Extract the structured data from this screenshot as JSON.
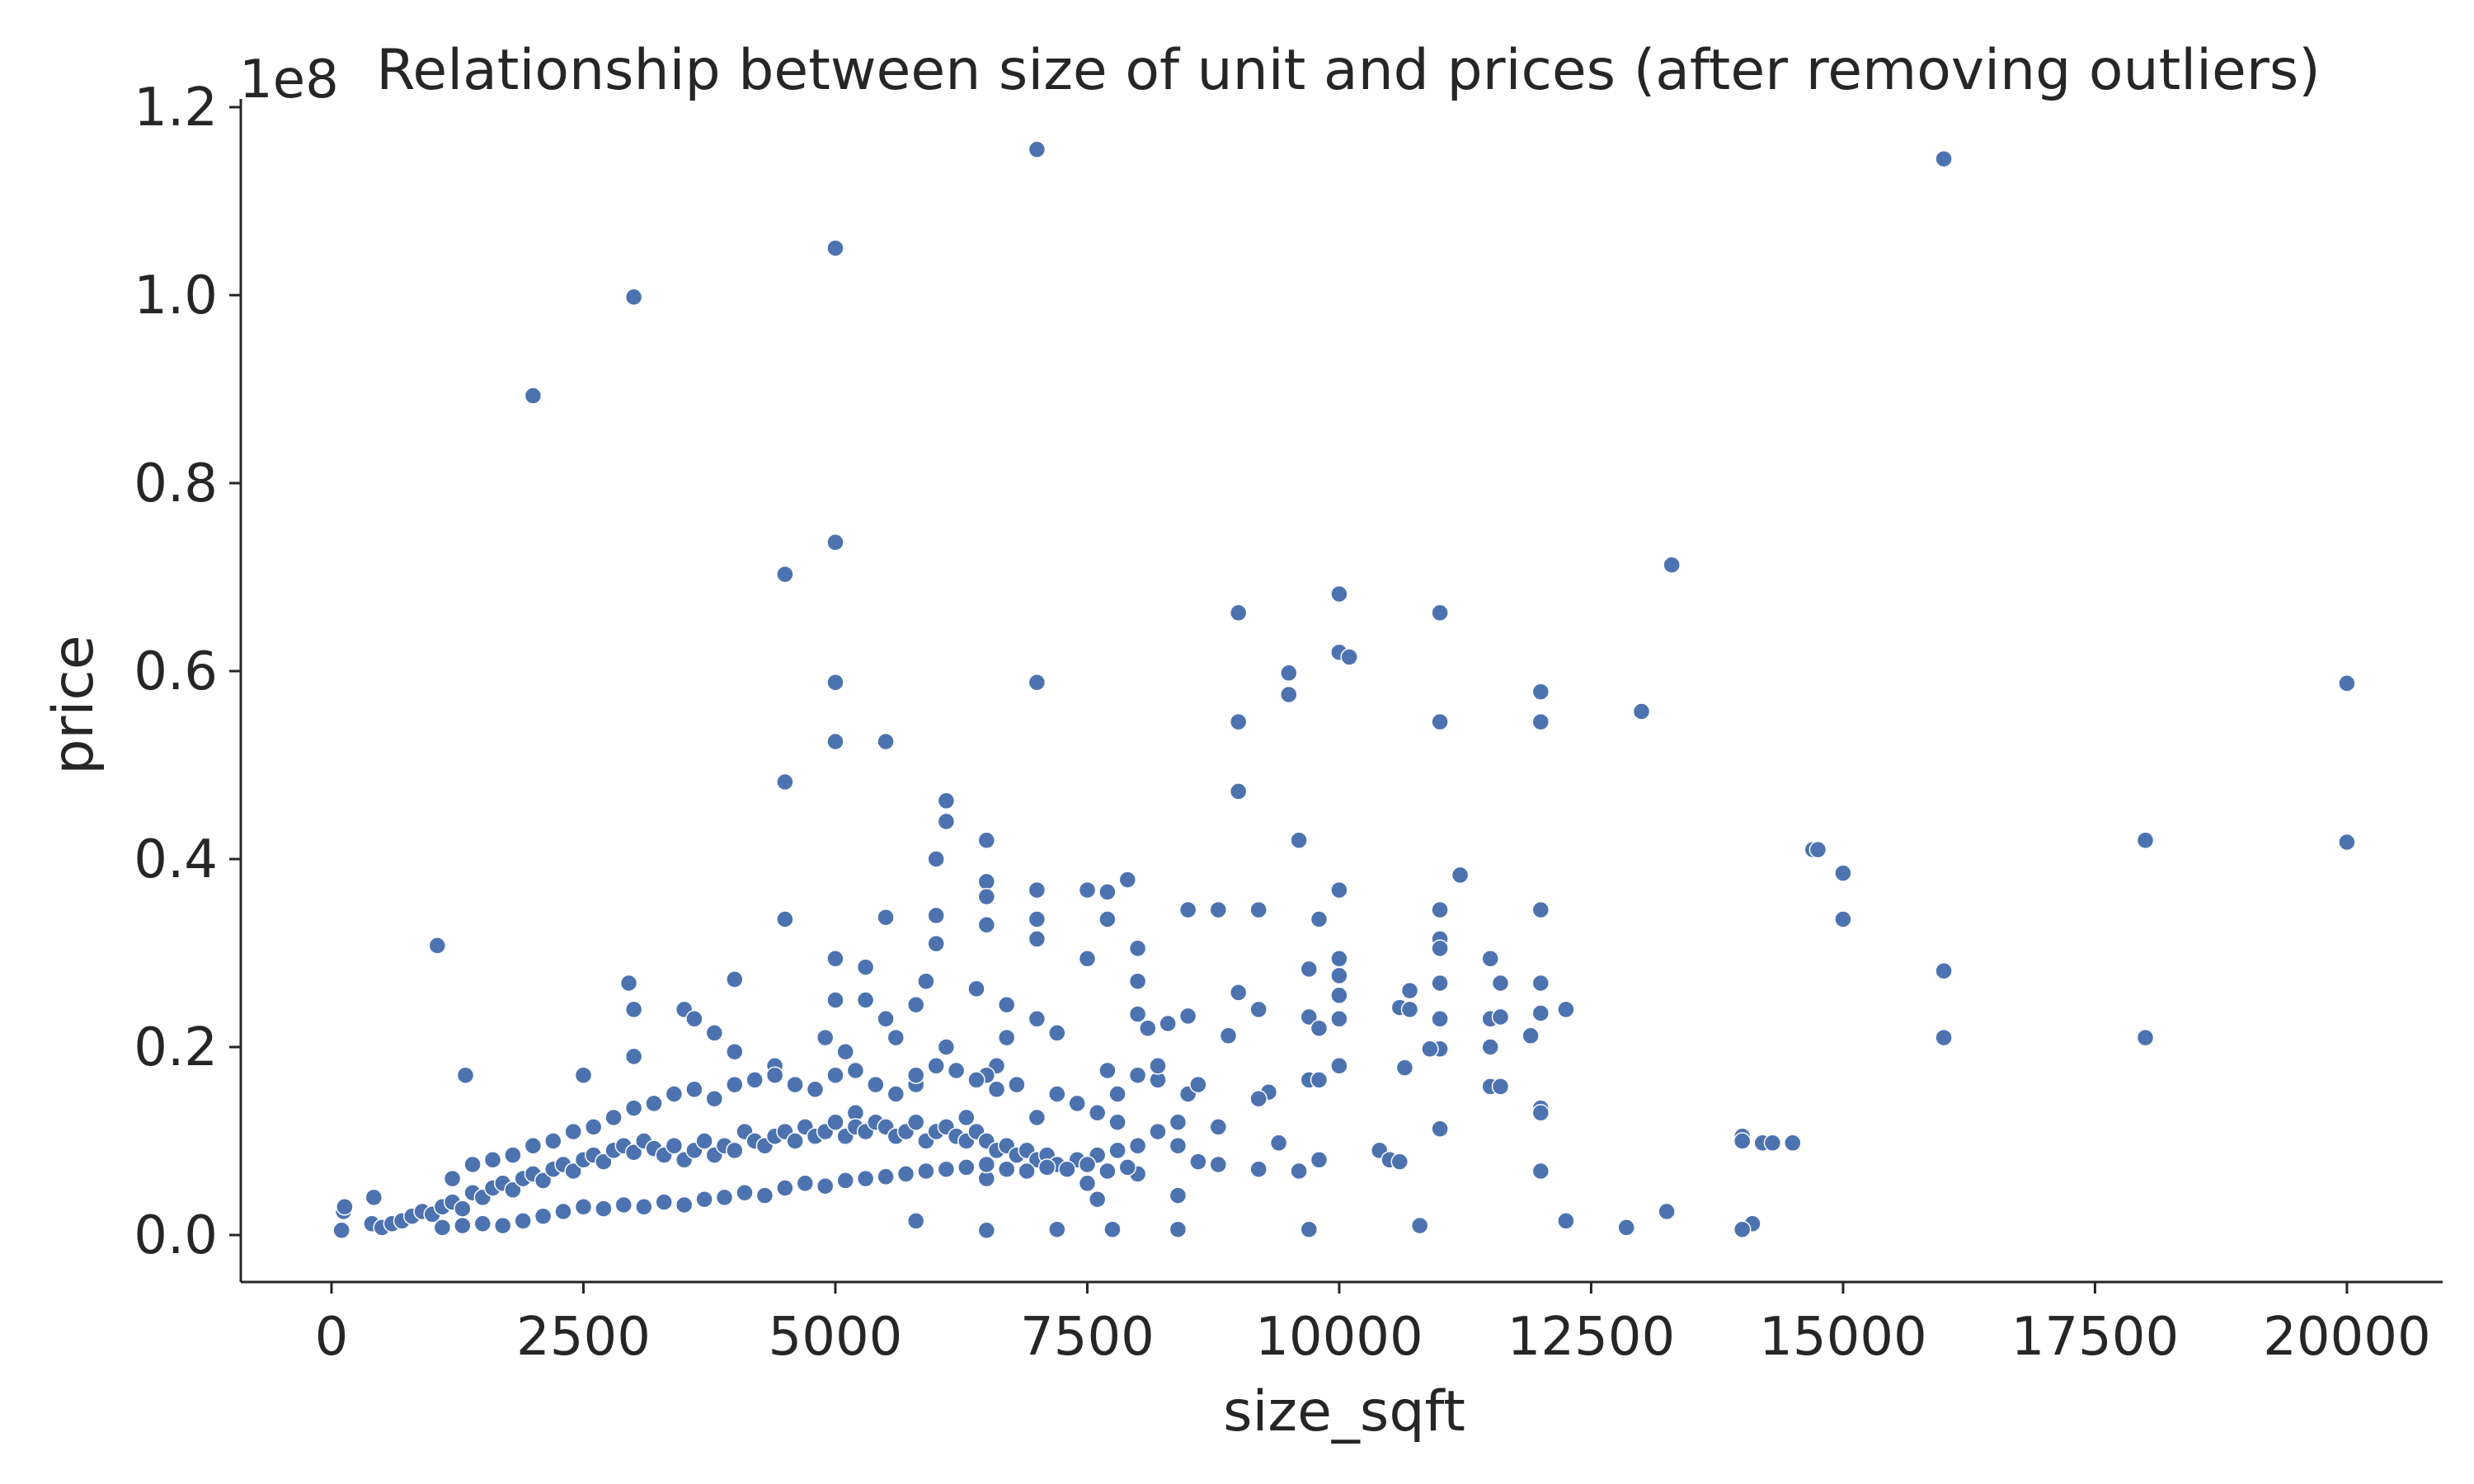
{
  "chart_data": {
    "type": "scatter",
    "title": "Relationship between size of unit and prices (after removing outliers)",
    "xlabel": "size_sqft",
    "ylabel": "price",
    "y_offset_label": "1e8",
    "xlim": [
      -900,
      20950
    ],
    "ylim": [
      -0.05,
      1.2
    ],
    "x_ticks": [
      0,
      2500,
      5000,
      7500,
      10000,
      12500,
      15000,
      17500,
      20000
    ],
    "x_tick_labels": [
      "0",
      "2500",
      "5000",
      "7500",
      "10000",
      "12500",
      "15000",
      "17500",
      "20000"
    ],
    "y_ticks": [
      0.0,
      0.2,
      0.4,
      0.6,
      0.8,
      1.0,
      1.2
    ],
    "y_tick_labels": [
      "0.0",
      "0.2",
      "0.4",
      "0.6",
      "0.8",
      "1.0",
      "1.2"
    ],
    "grid": false,
    "legend": false,
    "point_color": "#4c72b0",
    "points": [
      [
        7000,
        1.155
      ],
      [
        16000,
        1.145
      ],
      [
        5000,
        1.05
      ],
      [
        3000,
        0.998
      ],
      [
        2000,
        0.893
      ],
      [
        5000,
        0.737
      ],
      [
        4500,
        0.703
      ],
      [
        13300,
        0.713
      ],
      [
        10000,
        0.682
      ],
      [
        9000,
        0.662
      ],
      [
        11000,
        0.662
      ],
      [
        10000,
        0.62
      ],
      [
        10100,
        0.615
      ],
      [
        9500,
        0.598
      ],
      [
        9500,
        0.575
      ],
      [
        5000,
        0.588
      ],
      [
        7000,
        0.588
      ],
      [
        20000,
        0.587
      ],
      [
        12000,
        0.578
      ],
      [
        13000,
        0.557
      ],
      [
        9000,
        0.546
      ],
      [
        11000,
        0.546
      ],
      [
        12000,
        0.546
      ],
      [
        5000,
        0.525
      ],
      [
        5500,
        0.525
      ],
      [
        4500,
        0.482
      ],
      [
        9000,
        0.472
      ],
      [
        6100,
        0.462
      ],
      [
        6100,
        0.44
      ],
      [
        9600,
        0.42
      ],
      [
        6500,
        0.42
      ],
      [
        18000,
        0.42
      ],
      [
        20000,
        0.418
      ],
      [
        14700,
        0.41
      ],
      [
        14750,
        0.41
      ],
      [
        6000,
        0.4
      ],
      [
        15000,
        0.385
      ],
      [
        11200,
        0.383
      ],
      [
        7900,
        0.378
      ],
      [
        6500,
        0.376
      ],
      [
        7000,
        0.367
      ],
      [
        7500,
        0.367
      ],
      [
        7700,
        0.365
      ],
      [
        6500,
        0.36
      ],
      [
        10000,
        0.367
      ],
      [
        8500,
        0.346
      ],
      [
        8800,
        0.346
      ],
      [
        9200,
        0.346
      ],
      [
        11000,
        0.346
      ],
      [
        12000,
        0.346
      ],
      [
        5500,
        0.338
      ],
      [
        6000,
        0.34
      ],
      [
        4500,
        0.336
      ],
      [
        7000,
        0.336
      ],
      [
        7700,
        0.336
      ],
      [
        9800,
        0.336
      ],
      [
        15000,
        0.336
      ],
      [
        6500,
        0.33
      ],
      [
        7000,
        0.315
      ],
      [
        11000,
        0.315
      ],
      [
        1050,
        0.308
      ],
      [
        11000,
        0.305
      ],
      [
        6000,
        0.31
      ],
      [
        8000,
        0.305
      ],
      [
        5000,
        0.294
      ],
      [
        10000,
        0.294
      ],
      [
        11500,
        0.294
      ],
      [
        7500,
        0.294
      ],
      [
        5300,
        0.285
      ],
      [
        9700,
        0.283
      ],
      [
        16000,
        0.281
      ],
      [
        2950,
        0.268
      ],
      [
        8000,
        0.27
      ],
      [
        10000,
        0.276
      ],
      [
        11000,
        0.268
      ],
      [
        11600,
        0.268
      ],
      [
        12000,
        0.268
      ],
      [
        4000,
        0.272
      ],
      [
        5900,
        0.27
      ],
      [
        6400,
        0.262
      ],
      [
        10700,
        0.26
      ],
      [
        9000,
        0.258
      ],
      [
        10000,
        0.255
      ],
      [
        5000,
        0.25
      ],
      [
        5300,
        0.25
      ],
      [
        5800,
        0.245
      ],
      [
        6700,
        0.245
      ],
      [
        10600,
        0.242
      ],
      [
        10700,
        0.24
      ],
      [
        9200,
        0.24
      ],
      [
        3000,
        0.24
      ],
      [
        3500,
        0.24
      ],
      [
        12000,
        0.236
      ],
      [
        12250,
        0.24
      ],
      [
        8000,
        0.235
      ],
      [
        8500,
        0.233
      ],
      [
        9700,
        0.232
      ],
      [
        5500,
        0.23
      ],
      [
        3600,
        0.23
      ],
      [
        7000,
        0.23
      ],
      [
        10000,
        0.23
      ],
      [
        11000,
        0.23
      ],
      [
        11500,
        0.23
      ],
      [
        11600,
        0.232
      ],
      [
        8300,
        0.225
      ],
      [
        8100,
        0.22
      ],
      [
        9800,
        0.22
      ],
      [
        3800,
        0.215
      ],
      [
        7200,
        0.215
      ],
      [
        8900,
        0.212
      ],
      [
        11900,
        0.212
      ],
      [
        16000,
        0.21
      ],
      [
        18000,
        0.21
      ],
      [
        4900,
        0.21
      ],
      [
        5600,
        0.21
      ],
      [
        6700,
        0.21
      ],
      [
        11500,
        0.2
      ],
      [
        11000,
        0.198
      ],
      [
        10900,
        0.198
      ],
      [
        6100,
        0.2
      ],
      [
        5100,
        0.195
      ],
      [
        4000,
        0.195
      ],
      [
        3000,
        0.19
      ],
      [
        4400,
        0.18
      ],
      [
        6600,
        0.18
      ],
      [
        10000,
        0.18
      ],
      [
        10650,
        0.178
      ],
      [
        7700,
        0.175
      ],
      [
        1330,
        0.17
      ],
      [
        2500,
        0.17
      ],
      [
        6500,
        0.17
      ],
      [
        8200,
        0.165
      ],
      [
        9700,
        0.165
      ],
      [
        9800,
        0.165
      ],
      [
        11500,
        0.158
      ],
      [
        11600,
        0.158
      ],
      [
        5800,
        0.16
      ],
      [
        9300,
        0.152
      ],
      [
        8500,
        0.15
      ],
      [
        9200,
        0.145
      ],
      [
        12000,
        0.135
      ],
      [
        12000,
        0.13
      ],
      [
        5200,
        0.13
      ],
      [
        6300,
        0.125
      ],
      [
        7000,
        0.125
      ],
      [
        7800,
        0.12
      ],
      [
        8800,
        0.115
      ],
      [
        11000,
        0.113
      ],
      [
        14000,
        0.105
      ],
      [
        14000,
        0.1
      ],
      [
        14200,
        0.098
      ],
      [
        14300,
        0.098
      ],
      [
        14500,
        0.098
      ],
      [
        9400,
        0.098
      ],
      [
        10400,
        0.09
      ],
      [
        10500,
        0.08
      ],
      [
        10600,
        0.078
      ],
      [
        9800,
        0.08
      ],
      [
        8400,
        0.095
      ],
      [
        8600,
        0.078
      ],
      [
        8800,
        0.075
      ],
      [
        9600,
        0.068
      ],
      [
        9200,
        0.07
      ],
      [
        8000,
        0.065
      ],
      [
        12000,
        0.068
      ],
      [
        7500,
        0.055
      ],
      [
        6500,
        0.06
      ],
      [
        8400,
        0.042
      ],
      [
        7600,
        0.038
      ],
      [
        5800,
        0.015
      ],
      [
        12250,
        0.015
      ],
      [
        13250,
        0.025
      ],
      [
        14100,
        0.012
      ],
      [
        10800,
        0.01
      ],
      [
        9700,
        0.006
      ],
      [
        7200,
        0.006
      ],
      [
        6500,
        0.005
      ],
      [
        7750,
        0.006
      ],
      [
        8400,
        0.006
      ],
      [
        12850,
        0.008
      ],
      [
        14000,
        0.006
      ],
      [
        100,
        0.005
      ],
      [
        120,
        0.025
      ],
      [
        130,
        0.03
      ],
      [
        420,
        0.04
      ],
      [
        400,
        0.012
      ],
      [
        500,
        0.008
      ],
      [
        600,
        0.012
      ],
      [
        700,
        0.015
      ],
      [
        800,
        0.02
      ],
      [
        900,
        0.025
      ],
      [
        1000,
        0.022
      ],
      [
        1100,
        0.03
      ],
      [
        1200,
        0.035
      ],
      [
        1300,
        0.028
      ],
      [
        1400,
        0.045
      ],
      [
        1500,
        0.04
      ],
      [
        1600,
        0.05
      ],
      [
        1700,
        0.055
      ],
      [
        1800,
        0.048
      ],
      [
        1900,
        0.06
      ],
      [
        2000,
        0.065
      ],
      [
        2100,
        0.058
      ],
      [
        2200,
        0.07
      ],
      [
        2300,
        0.075
      ],
      [
        2400,
        0.068
      ],
      [
        2500,
        0.08
      ],
      [
        2600,
        0.085
      ],
      [
        2700,
        0.078
      ],
      [
        2800,
        0.09
      ],
      [
        2900,
        0.095
      ],
      [
        3000,
        0.088
      ],
      [
        3100,
        0.1
      ],
      [
        3200,
        0.092
      ],
      [
        3300,
        0.085
      ],
      [
        3400,
        0.095
      ],
      [
        3500,
        0.08
      ],
      [
        3600,
        0.09
      ],
      [
        3700,
        0.1
      ],
      [
        3800,
        0.085
      ],
      [
        3900,
        0.095
      ],
      [
        4000,
        0.09
      ],
      [
        4100,
        0.11
      ],
      [
        4200,
        0.1
      ],
      [
        4300,
        0.095
      ],
      [
        4400,
        0.105
      ],
      [
        4500,
        0.11
      ],
      [
        4600,
        0.1
      ],
      [
        4700,
        0.115
      ],
      [
        4800,
        0.105
      ],
      [
        4900,
        0.11
      ],
      [
        5000,
        0.12
      ],
      [
        5100,
        0.105
      ],
      [
        5200,
        0.115
      ],
      [
        5300,
        0.11
      ],
      [
        5400,
        0.12
      ],
      [
        5500,
        0.115
      ],
      [
        5600,
        0.105
      ],
      [
        5700,
        0.11
      ],
      [
        5800,
        0.12
      ],
      [
        5900,
        0.1
      ],
      [
        6000,
        0.11
      ],
      [
        6100,
        0.115
      ],
      [
        6200,
        0.105
      ],
      [
        6300,
        0.1
      ],
      [
        6400,
        0.11
      ],
      [
        6500,
        0.1
      ],
      [
        6600,
        0.09
      ],
      [
        6700,
        0.095
      ],
      [
        6800,
        0.085
      ],
      [
        6900,
        0.09
      ],
      [
        7000,
        0.08
      ],
      [
        7100,
        0.085
      ],
      [
        7200,
        0.075
      ],
      [
        7400,
        0.08
      ],
      [
        7600,
        0.085
      ],
      [
        7800,
        0.09
      ],
      [
        8000,
        0.095
      ],
      [
        8200,
        0.11
      ],
      [
        8400,
        0.12
      ],
      [
        1100,
        0.008
      ],
      [
        1300,
        0.01
      ],
      [
        1500,
        0.012
      ],
      [
        1700,
        0.01
      ],
      [
        1900,
        0.015
      ],
      [
        2100,
        0.02
      ],
      [
        2300,
        0.025
      ],
      [
        2500,
        0.03
      ],
      [
        2700,
        0.028
      ],
      [
        2900,
        0.032
      ],
      [
        3100,
        0.03
      ],
      [
        3300,
        0.035
      ],
      [
        3500,
        0.032
      ],
      [
        3700,
        0.038
      ],
      [
        3900,
        0.04
      ],
      [
        4100,
        0.045
      ],
      [
        4300,
        0.042
      ],
      [
        4500,
        0.05
      ],
      [
        4700,
        0.055
      ],
      [
        4900,
        0.052
      ],
      [
        5100,
        0.058
      ],
      [
        5300,
        0.06
      ],
      [
        5500,
        0.062
      ],
      [
        5700,
        0.065
      ],
      [
        5900,
        0.068
      ],
      [
        6100,
        0.07
      ],
      [
        6300,
        0.072
      ],
      [
        6500,
        0.075
      ],
      [
        6700,
        0.07
      ],
      [
        6900,
        0.068
      ],
      [
        7100,
        0.072
      ],
      [
        7300,
        0.07
      ],
      [
        7500,
        0.075
      ],
      [
        7700,
        0.068
      ],
      [
        7900,
        0.072
      ],
      [
        1200,
        0.06
      ],
      [
        1400,
        0.075
      ],
      [
        1600,
        0.08
      ],
      [
        1800,
        0.085
      ],
      [
        2000,
        0.095
      ],
      [
        2200,
        0.1
      ],
      [
        2400,
        0.11
      ],
      [
        2600,
        0.115
      ],
      [
        2800,
        0.125
      ],
      [
        3000,
        0.135
      ],
      [
        3200,
        0.14
      ],
      [
        3400,
        0.15
      ],
      [
        3600,
        0.155
      ],
      [
        3800,
        0.145
      ],
      [
        4000,
        0.16
      ],
      [
        4200,
        0.165
      ],
      [
        4400,
        0.17
      ],
      [
        4600,
        0.16
      ],
      [
        4800,
        0.155
      ],
      [
        5000,
        0.17
      ],
      [
        5200,
        0.175
      ],
      [
        5400,
        0.16
      ],
      [
        5600,
        0.15
      ],
      [
        5800,
        0.17
      ],
      [
        6000,
        0.18
      ],
      [
        6200,
        0.175
      ],
      [
        6400,
        0.165
      ],
      [
        6600,
        0.155
      ],
      [
        6800,
        0.16
      ],
      [
        7200,
        0.15
      ],
      [
        7400,
        0.14
      ],
      [
        7600,
        0.13
      ],
      [
        7800,
        0.15
      ],
      [
        8000,
        0.17
      ],
      [
        8200,
        0.18
      ],
      [
        8600,
        0.16
      ]
    ]
  }
}
